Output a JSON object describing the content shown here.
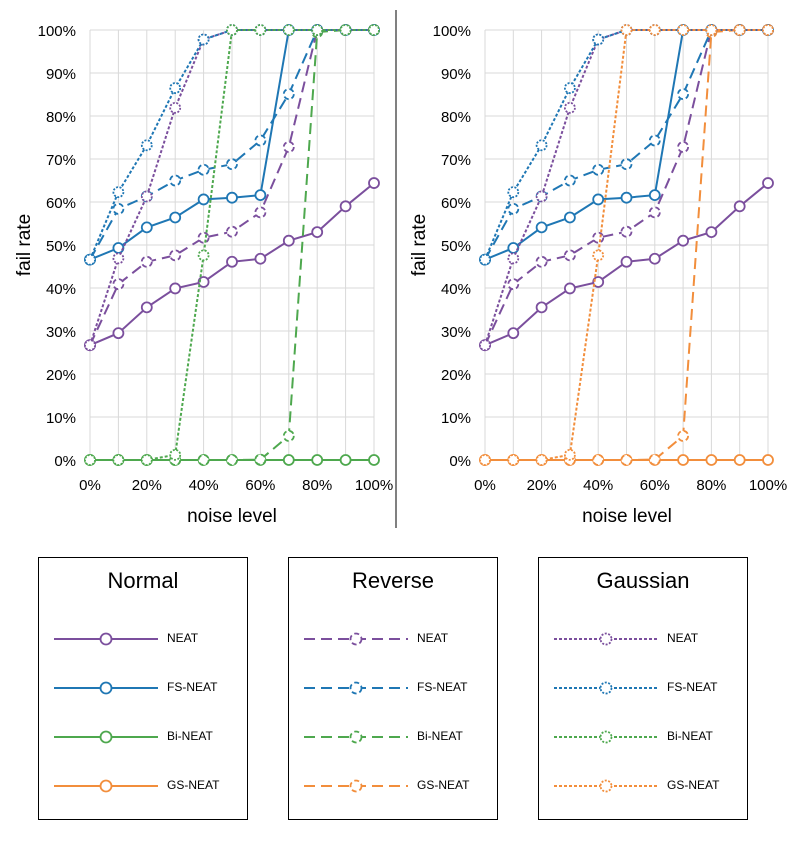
{
  "chart_data": [
    {
      "type": "line",
      "panel": "left",
      "x": [
        0,
        10,
        20,
        30,
        40,
        50,
        60,
        70,
        80,
        90,
        100
      ],
      "xticks": [
        "0%",
        "20%",
        "40%",
        "60%",
        "80%",
        "100%"
      ],
      "yticks": [
        "0%",
        "10%",
        "20%",
        "30%",
        "40%",
        "50%",
        "60%",
        "70%",
        "80%",
        "90%",
        "100%"
      ],
      "xlabel": "noise level",
      "ylabel": "fail rate",
      "ylim": [
        0,
        100
      ],
      "xlim": [
        0,
        100
      ],
      "grid": true,
      "series": [
        {
          "name": "NEAT (Normal)",
          "style": "solid",
          "color": "#7B4F9D",
          "values": [
            26.7,
            29.5,
            35.5,
            39.9,
            41.4,
            46.1,
            46.8,
            51.0,
            53.0,
            59.0,
            64.4
          ]
        },
        {
          "name": "FS-NEAT (Normal)",
          "style": "solid",
          "color": "#1F77B4",
          "values": [
            46.6,
            49.3,
            54.1,
            56.4,
            60.6,
            61.0,
            61.6,
            100,
            100,
            100,
            100
          ]
        },
        {
          "name": "Bi-NEAT (Normal)",
          "style": "solid",
          "color": "#4EA84E",
          "values": [
            0,
            0,
            0,
            0,
            0,
            0,
            0,
            0,
            0,
            0,
            0
          ]
        },
        {
          "name": "NEAT (Reverse)",
          "style": "dash",
          "color": "#7B4F9D",
          "values": [
            26.7,
            40.9,
            46.1,
            47.6,
            51.7,
            53.1,
            57.6,
            72.8,
            100,
            100,
            100
          ]
        },
        {
          "name": "FS-NEAT (Reverse)",
          "style": "dash",
          "color": "#1F77B4",
          "values": [
            46.6,
            58.4,
            61.3,
            65.0,
            67.5,
            68.8,
            74.3,
            85.1,
            100,
            100,
            100
          ]
        },
        {
          "name": "Bi-NEAT (Reverse)",
          "style": "dash",
          "color": "#4EA84E",
          "values": [
            0,
            0,
            0,
            0,
            0,
            0,
            0.1,
            5.6,
            99.5,
            100,
            100
          ]
        },
        {
          "name": "NEAT (Gaussian)",
          "style": "dot",
          "color": "#7B4F9D",
          "values": [
            26.7,
            46.9,
            61.3,
            81.9,
            97.8,
            100,
            100,
            100,
            100,
            100,
            100
          ]
        },
        {
          "name": "FS-NEAT (Gaussian)",
          "style": "dot",
          "color": "#1F77B4",
          "values": [
            46.6,
            62.3,
            73.2,
            86.5,
            97.8,
            100,
            100,
            100,
            100,
            100,
            100
          ]
        },
        {
          "name": "Bi-NEAT (Gaussian)",
          "style": "dot",
          "color": "#4EA84E",
          "values": [
            0,
            0,
            0,
            1.2,
            47.6,
            100,
            100,
            100,
            100,
            100,
            100
          ]
        }
      ]
    },
    {
      "type": "line",
      "panel": "right",
      "x": [
        0,
        10,
        20,
        30,
        40,
        50,
        60,
        70,
        80,
        90,
        100
      ],
      "xticks": [
        "0%",
        "20%",
        "40%",
        "60%",
        "80%",
        "100%"
      ],
      "yticks": [
        "0%",
        "10%",
        "20%",
        "30%",
        "40%",
        "50%",
        "60%",
        "70%",
        "80%",
        "90%",
        "100%"
      ],
      "xlabel": "noise level",
      "ylabel": "fail rate",
      "ylim": [
        0,
        100
      ],
      "xlim": [
        0,
        100
      ],
      "grid": true,
      "series": [
        {
          "name": "NEAT (Normal)",
          "style": "solid",
          "color": "#7B4F9D",
          "values": [
            26.7,
            29.5,
            35.5,
            39.9,
            41.4,
            46.1,
            46.8,
            51.0,
            53.0,
            59.0,
            64.4
          ]
        },
        {
          "name": "FS-NEAT (Normal)",
          "style": "solid",
          "color": "#1F77B4",
          "values": [
            46.6,
            49.3,
            54.1,
            56.4,
            60.6,
            61.0,
            61.6,
            100,
            100,
            100,
            100
          ]
        },
        {
          "name": "GS-NEAT (Normal)",
          "style": "solid",
          "color": "#F28E3C",
          "values": [
            0,
            0,
            0,
            0,
            0,
            0,
            0,
            0,
            0,
            0,
            0
          ]
        },
        {
          "name": "NEAT (Reverse)",
          "style": "dash",
          "color": "#7B4F9D",
          "values": [
            26.7,
            40.9,
            46.1,
            47.6,
            51.7,
            53.1,
            57.6,
            72.8,
            100,
            100,
            100
          ]
        },
        {
          "name": "FS-NEAT (Reverse)",
          "style": "dash",
          "color": "#1F77B4",
          "values": [
            46.6,
            58.4,
            61.3,
            65.0,
            67.5,
            68.8,
            74.3,
            85.1,
            100,
            100,
            100
          ]
        },
        {
          "name": "GS-NEAT (Reverse)",
          "style": "dash",
          "color": "#F28E3C",
          "values": [
            0,
            0,
            0,
            0,
            0,
            0,
            0.1,
            5.6,
            99.5,
            100,
            100
          ]
        },
        {
          "name": "NEAT (Gaussian)",
          "style": "dot",
          "color": "#7B4F9D",
          "values": [
            26.7,
            46.9,
            61.3,
            81.9,
            97.8,
            100,
            100,
            100,
            100,
            100,
            100
          ]
        },
        {
          "name": "FS-NEAT (Gaussian)",
          "style": "dot",
          "color": "#1F77B4",
          "values": [
            46.6,
            62.3,
            73.2,
            86.5,
            97.8,
            100,
            100,
            100,
            100,
            100,
            100
          ]
        },
        {
          "name": "GS-NEAT (Gaussian)",
          "style": "dot",
          "color": "#F28E3C",
          "values": [
            0,
            0,
            0,
            1.2,
            47.6,
            100,
            100,
            100,
            100,
            100,
            100
          ]
        }
      ]
    }
  ],
  "legend": {
    "groups": [
      {
        "title": "Normal",
        "style": "solid",
        "items": [
          {
            "label": "NEAT",
            "color": "#7B4F9D"
          },
          {
            "label": "FS-NEAT",
            "color": "#1F77B4"
          },
          {
            "label": "Bi-NEAT",
            "color": "#4EA84E"
          },
          {
            "label": "GS-NEAT",
            "color": "#F28E3C"
          }
        ]
      },
      {
        "title": "Reverse",
        "style": "dash",
        "items": [
          {
            "label": "NEAT",
            "color": "#7B4F9D"
          },
          {
            "label": "FS-NEAT",
            "color": "#1F77B4"
          },
          {
            "label": "Bi-NEAT",
            "color": "#4EA84E"
          },
          {
            "label": "GS-NEAT",
            "color": "#F28E3C"
          }
        ]
      },
      {
        "title": "Gaussian",
        "style": "dot",
        "items": [
          {
            "label": "NEAT",
            "color": "#7B4F9D"
          },
          {
            "label": "FS-NEAT",
            "color": "#1F77B4"
          },
          {
            "label": "Bi-NEAT",
            "color": "#4EA84E"
          },
          {
            "label": "GS-NEAT",
            "color": "#F28E3C"
          }
        ]
      }
    ]
  }
}
